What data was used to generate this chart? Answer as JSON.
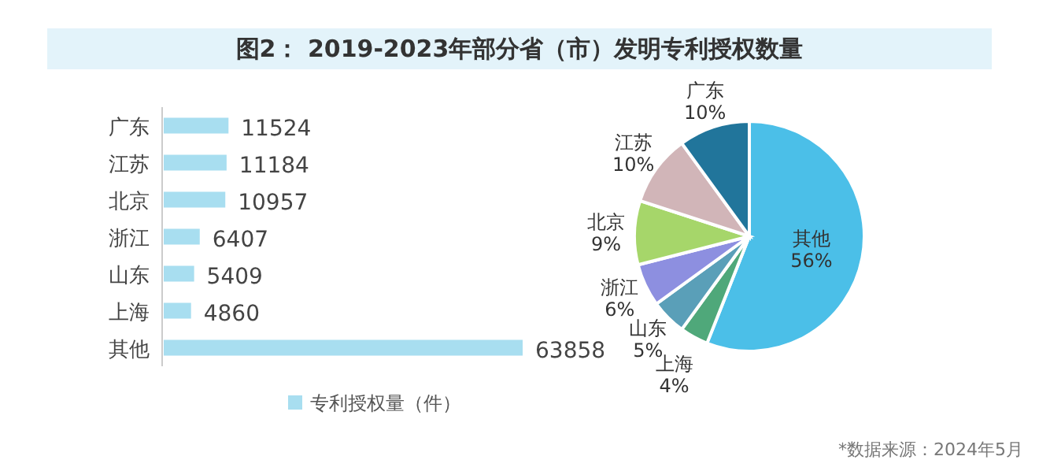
{
  "chart_data": [
    {
      "type": "bar",
      "orientation": "horizontal",
      "title": "图2： 2019-2023年部分省（市）发明专利授权数量",
      "categories": [
        "广东",
        "江苏",
        "北京",
        "浙江",
        "山东",
        "上海",
        "其他"
      ],
      "series": [
        {
          "name": "专利授权量（件）",
          "color": "#a8def0",
          "values": [
            11524,
            11184,
            10957,
            6407,
            5409,
            4860,
            63858
          ]
        }
      ],
      "data_labels": true,
      "legend": "bottom"
    },
    {
      "type": "pie",
      "categories": [
        "其他",
        "上海",
        "山东",
        "浙江",
        "北京",
        "江苏",
        "广东"
      ],
      "values": [
        56,
        4,
        5,
        6,
        9,
        10,
        10
      ],
      "value_labels": [
        "56%",
        "4%",
        "5%",
        "6%",
        "9%",
        "10%",
        "10%"
      ],
      "colors": [
        "#4bbfe8",
        "#4fa87a",
        "#5a9fb8",
        "#8d8fe0",
        "#a6d66a",
        "#d1b5b8",
        "#21759b"
      ],
      "annotations": [
        "*数据来源：2024年5月"
      ]
    }
  ]
}
